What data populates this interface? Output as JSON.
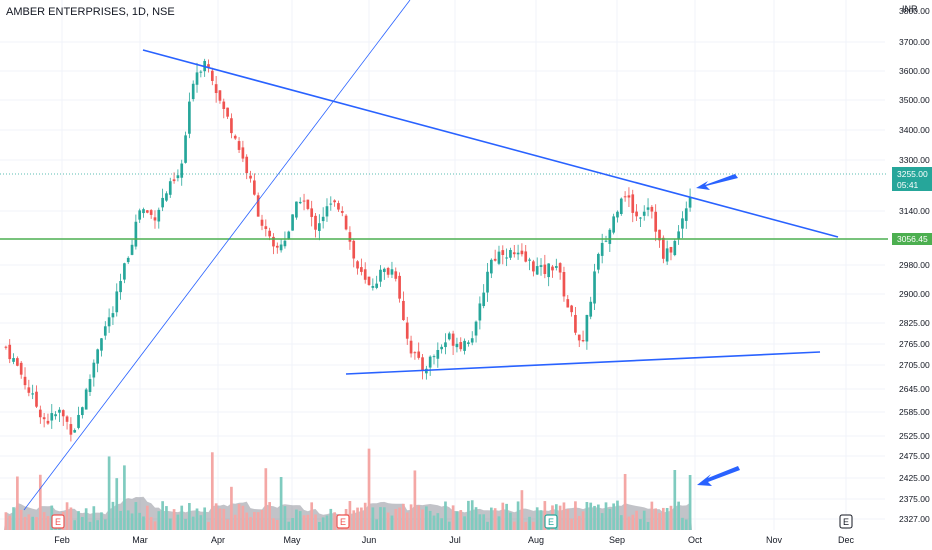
{
  "header": {
    "symbol_line": "AMBER ENTERPRISES, 1D, NSE",
    "currency": "INR"
  },
  "colors": {
    "up": "#26a69a",
    "down": "#ef5350",
    "trendline": "#2962ff",
    "support": "#4caf50",
    "volume_up": "#7fcbbf",
    "volume_down": "#f4a7a5",
    "volume_ma": "#787b86"
  },
  "chart_data": {
    "type": "candlestick",
    "title": "AMBER ENTERPRISES, 1D, NSE",
    "price_axis": {
      "ticks": [
        "3700.00",
        "3600.00",
        "3500.00",
        "3400.00",
        "3300.00",
        "3140.00",
        "2980.00",
        "2900.00",
        "2825.00",
        "2765.00",
        "2705.00",
        "2645.00",
        "2585.00",
        "2525.00",
        "2475.00",
        "2425.00",
        "2375.00",
        "2327.00"
      ],
      "last_price": {
        "value": "3255.00",
        "countdown": "05:41"
      },
      "level_label": "3056.45",
      "top_partial": "3800.00"
    },
    "x_axis": {
      "labels": [
        "Feb",
        "Mar",
        "Apr",
        "May",
        "Jun",
        "Jul",
        "Aug",
        "Sep",
        "Oct",
        "Nov",
        "Dec"
      ]
    },
    "earnings_markers": [
      {
        "date": "Feb",
        "label": "E"
      },
      {
        "date": "May",
        "label": "E"
      },
      {
        "date": "Aug",
        "label": "E"
      },
      {
        "date": "Dec",
        "label": "E"
      }
    ],
    "drawings": {
      "support_level": 3056.45,
      "upper_trendline": [
        {
          "date": "Mar",
          "price": 3660
        },
        {
          "date": "Nov",
          "price": 3060
        }
      ],
      "lower_trendline": [
        {
          "date": "late May",
          "price": 2680
        },
        {
          "date": "Nov",
          "price": 2740
        }
      ],
      "steep_line": "rising diagonal from early Feb to April"
    },
    "series_points": [
      2760,
      2690,
      2600,
      2530,
      2560,
      2500,
      2620,
      2790,
      2870,
      3030,
      3190,
      3160,
      3240,
      3290,
      3600,
      3650,
      3510,
      3420,
      3300,
      3150,
      3050,
      3110,
      3230,
      3130,
      3190,
      3200,
      3020,
      2940,
      2990,
      3000,
      2770,
      2690,
      2740,
      2790,
      2770,
      2810,
      3020,
      3060,
      3040,
      3020,
      2990,
      3020,
      2870,
      2760,
      3020,
      3120,
      3250,
      3160,
      3210,
      3030,
      3090,
      3240
    ]
  }
}
